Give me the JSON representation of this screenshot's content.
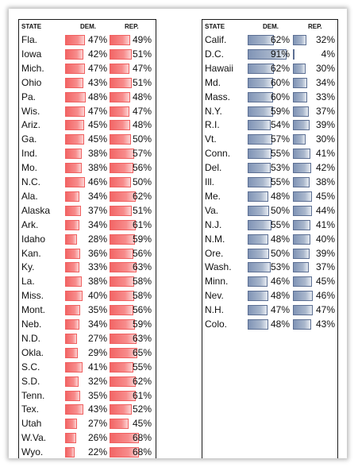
{
  "headers": {
    "state": "STATE",
    "dem": "DEM.",
    "rep": "REP."
  },
  "colors": {
    "left_bar": "#f26565",
    "right_bar": "#8094b6"
  },
  "left_table": [
    {
      "state": "Fla.",
      "dem": "47%",
      "rep": "49%",
      "dem_value": 47,
      "rep_value": 49
    },
    {
      "state": "Iowa",
      "dem": "42%",
      "rep": "51%",
      "dem_value": 42,
      "rep_value": 51
    },
    {
      "state": "Mich.",
      "dem": "47%",
      "rep": "47%",
      "dem_value": 47,
      "rep_value": 47
    },
    {
      "state": "Ohio",
      "dem": "43%",
      "rep": "51%",
      "dem_value": 43,
      "rep_value": 51
    },
    {
      "state": "Pa.",
      "dem": "48%",
      "rep": "48%",
      "dem_value": 48,
      "rep_value": 48
    },
    {
      "state": "Wis.",
      "dem": "47%",
      "rep": "47%",
      "dem_value": 47,
      "rep_value": 47
    },
    {
      "state": "Ariz.",
      "dem": "45%",
      "rep": "48%",
      "dem_value": 45,
      "rep_value": 48
    },
    {
      "state": "Ga.",
      "dem": "45%",
      "rep": "50%",
      "dem_value": 45,
      "rep_value": 50
    },
    {
      "state": "Ind.",
      "dem": "38%",
      "rep": "57%",
      "dem_value": 38,
      "rep_value": 57
    },
    {
      "state": "Mo.",
      "dem": "38%",
      "rep": "56%",
      "dem_value": 38,
      "rep_value": 56
    },
    {
      "state": "N.C.",
      "dem": "46%",
      "rep": "50%",
      "dem_value": 46,
      "rep_value": 50
    },
    {
      "state": "Ala.",
      "dem": "34%",
      "rep": "62%",
      "dem_value": 34,
      "rep_value": 62
    },
    {
      "state": "Alaska",
      "dem": "37%",
      "rep": "51%",
      "dem_value": 37,
      "rep_value": 51
    },
    {
      "state": "Ark.",
      "dem": "34%",
      "rep": "61%",
      "dem_value": 34,
      "rep_value": 61
    },
    {
      "state": "Idaho",
      "dem": "28%",
      "rep": "59%",
      "dem_value": 28,
      "rep_value": 59
    },
    {
      "state": "Kan.",
      "dem": "36%",
      "rep": "56%",
      "dem_value": 36,
      "rep_value": 56
    },
    {
      "state": "Ky.",
      "dem": "33%",
      "rep": "63%",
      "dem_value": 33,
      "rep_value": 63
    },
    {
      "state": "La.",
      "dem": "38%",
      "rep": "58%",
      "dem_value": 38,
      "rep_value": 58
    },
    {
      "state": "Miss.",
      "dem": "40%",
      "rep": "58%",
      "dem_value": 40,
      "rep_value": 58
    },
    {
      "state": "Mont.",
      "dem": "35%",
      "rep": "56%",
      "dem_value": 35,
      "rep_value": 56
    },
    {
      "state": "Neb.",
      "dem": "34%",
      "rep": "59%",
      "dem_value": 34,
      "rep_value": 59
    },
    {
      "state": "N.D.",
      "dem": "27%",
      "rep": "63%",
      "dem_value": 27,
      "rep_value": 63
    },
    {
      "state": "Okla.",
      "dem": "29%",
      "rep": "65%",
      "dem_value": 29,
      "rep_value": 65
    },
    {
      "state": "S.C.",
      "dem": "41%",
      "rep": "55%",
      "dem_value": 41,
      "rep_value": 55
    },
    {
      "state": "S.D.",
      "dem": "32%",
      "rep": "62%",
      "dem_value": 32,
      "rep_value": 62
    },
    {
      "state": "Tenn.",
      "dem": "35%",
      "rep": "61%",
      "dem_value": 35,
      "rep_value": 61
    },
    {
      "state": "Tex.",
      "dem": "43%",
      "rep": "52%",
      "dem_value": 43,
      "rep_value": 52
    },
    {
      "state": "Utah",
      "dem": "27%",
      "rep": "45%",
      "dem_value": 27,
      "rep_value": 45
    },
    {
      "state": "W.Va.",
      "dem": "26%",
      "rep": "68%",
      "dem_value": 26,
      "rep_value": 68
    },
    {
      "state": "Wyo.",
      "dem": "22%",
      "rep": "68%",
      "dem_value": 22,
      "rep_value": 68
    }
  ],
  "right_table": [
    {
      "state": "Calif.",
      "dem": "62%",
      "rep": "32%",
      "dem_value": 62,
      "rep_value": 32
    },
    {
      "state": "D.C.",
      "dem": "91%",
      "rep": "4%",
      "dem_value": 91,
      "rep_value": 4
    },
    {
      "state": "Hawaii",
      "dem": "62%",
      "rep": "30%",
      "dem_value": 62,
      "rep_value": 30
    },
    {
      "state": "Md.",
      "dem": "60%",
      "rep": "34%",
      "dem_value": 60,
      "rep_value": 34
    },
    {
      "state": "Mass.",
      "dem": "60%",
      "rep": "33%",
      "dem_value": 60,
      "rep_value": 33
    },
    {
      "state": "N.Y.",
      "dem": "59%",
      "rep": "37%",
      "dem_value": 59,
      "rep_value": 37
    },
    {
      "state": "R.I.",
      "dem": "54%",
      "rep": "39%",
      "dem_value": 54,
      "rep_value": 39
    },
    {
      "state": "Vt.",
      "dem": "57%",
      "rep": "30%",
      "dem_value": 57,
      "rep_value": 30
    },
    {
      "state": "Conn.",
      "dem": "55%",
      "rep": "41%",
      "dem_value": 55,
      "rep_value": 41
    },
    {
      "state": "Del.",
      "dem": "53%",
      "rep": "42%",
      "dem_value": 53,
      "rep_value": 42
    },
    {
      "state": "Ill.",
      "dem": "55%",
      "rep": "38%",
      "dem_value": 55,
      "rep_value": 38
    },
    {
      "state": "Me.",
      "dem": "48%",
      "rep": "45%",
      "dem_value": 48,
      "rep_value": 45
    },
    {
      "state": "Va.",
      "dem": "50%",
      "rep": "44%",
      "dem_value": 50,
      "rep_value": 44
    },
    {
      "state": "N.J.",
      "dem": "55%",
      "rep": "41%",
      "dem_value": 55,
      "rep_value": 41
    },
    {
      "state": "N.M.",
      "dem": "48%",
      "rep": "40%",
      "dem_value": 48,
      "rep_value": 40
    },
    {
      "state": "Ore.",
      "dem": "50%",
      "rep": "39%",
      "dem_value": 50,
      "rep_value": 39
    },
    {
      "state": "Wash.",
      "dem": "53%",
      "rep": "37%",
      "dem_value": 53,
      "rep_value": 37
    },
    {
      "state": "Minn.",
      "dem": "46%",
      "rep": "45%",
      "dem_value": 46,
      "rep_value": 45
    },
    {
      "state": "Nev.",
      "dem": "48%",
      "rep": "46%",
      "dem_value": 48,
      "rep_value": 46
    },
    {
      "state": "N.H.",
      "dem": "47%",
      "rep": "47%",
      "dem_value": 47,
      "rep_value": 47
    },
    {
      "state": "Colo.",
      "dem": "48%",
      "rep": "43%",
      "dem_value": 48,
      "rep_value": 43
    }
  ]
}
